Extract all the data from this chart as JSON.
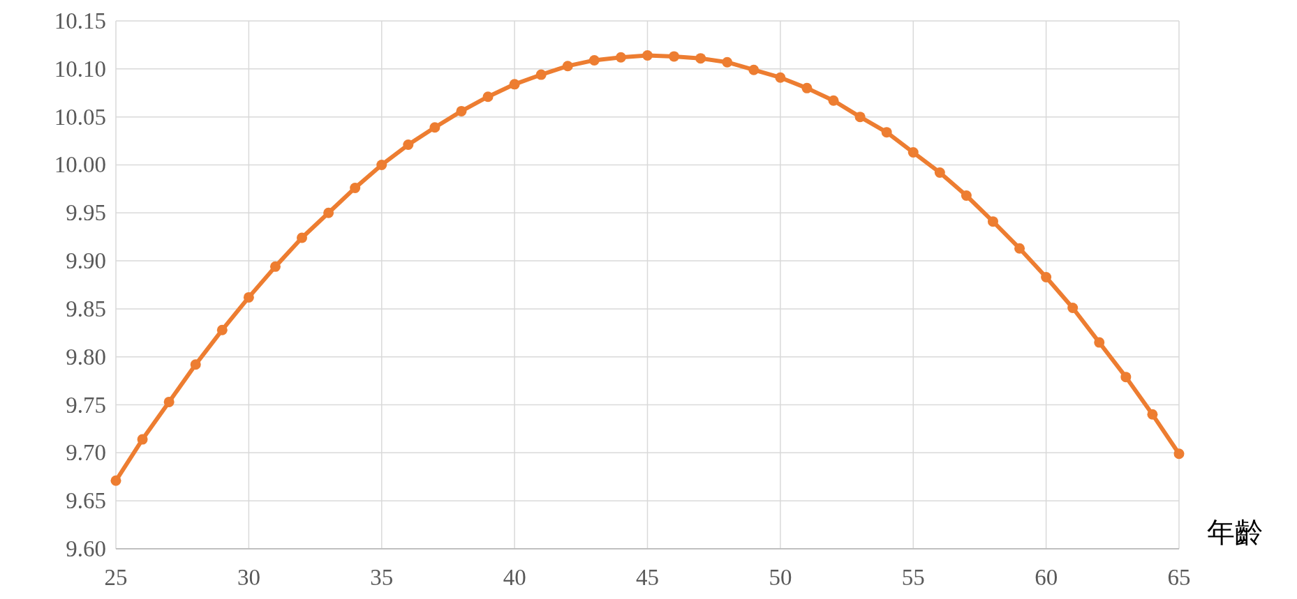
{
  "chart_data": {
    "type": "line",
    "xlabel": "年齡",
    "color": "#ed7d31",
    "marker": "circle",
    "grid": true,
    "x": [
      25,
      26,
      27,
      28,
      29,
      30,
      31,
      32,
      33,
      34,
      35,
      36,
      37,
      38,
      39,
      40,
      41,
      42,
      43,
      44,
      45,
      46,
      47,
      48,
      49,
      50,
      51,
      52,
      53,
      54,
      55,
      56,
      57,
      58,
      59,
      60,
      61,
      62,
      63,
      64,
      65
    ],
    "values": [
      9.671,
      9.714,
      9.753,
      9.792,
      9.828,
      9.862,
      9.894,
      9.924,
      9.95,
      9.976,
      10.0,
      10.021,
      10.039,
      10.056,
      10.071,
      10.084,
      10.094,
      10.103,
      10.109,
      10.112,
      10.114,
      10.113,
      10.111,
      10.107,
      10.099,
      10.091,
      10.08,
      10.067,
      10.05,
      10.034,
      10.013,
      9.992,
      9.968,
      9.941,
      9.913,
      9.883,
      9.851,
      9.815,
      9.779,
      9.74,
      9.699
    ],
    "xlim": [
      25,
      65
    ],
    "xticks": [
      25,
      30,
      35,
      40,
      45,
      50,
      55,
      60,
      65
    ],
    "ylim": [
      9.6,
      10.15
    ],
    "yticks": [
      {
        "value": 9.6,
        "label": "9.60"
      },
      {
        "value": 9.65,
        "label": "9.65"
      },
      {
        "value": 9.7,
        "label": "9.70"
      },
      {
        "value": 9.75,
        "label": "9.75"
      },
      {
        "value": 9.8,
        "label": "9.80"
      },
      {
        "value": 9.85,
        "label": "9.85"
      },
      {
        "value": 9.9,
        "label": "9.90"
      },
      {
        "value": 9.95,
        "label": "9.95"
      },
      {
        "value": 10.0,
        "label": "10.00"
      },
      {
        "value": 10.05,
        "label": "10.05"
      },
      {
        "value": 10.1,
        "label": "10.10"
      },
      {
        "value": 10.15,
        "label": "10.15"
      }
    ]
  }
}
